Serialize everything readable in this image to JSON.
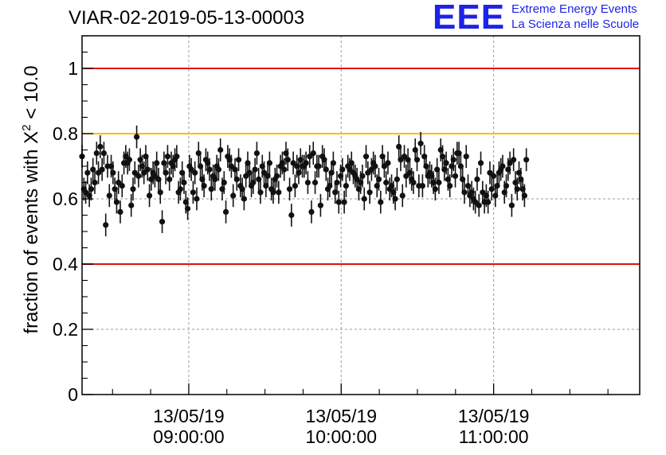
{
  "header": {
    "title": "VIAR-02-2019-05-13-00003"
  },
  "logo": {
    "mark": "EEE",
    "line1": "Extreme Energy Events",
    "line2": "La Scienza nelle Scuole"
  },
  "colors": {
    "red_line": "#dd1111",
    "orange_line": "#ffbb00",
    "marker": "#111111",
    "grid": "#999999",
    "logo_blue": "#1d23e6"
  },
  "chart_data": {
    "type": "scatter",
    "title": "VIAR-02-2019-05-13-00003",
    "ylabel_prefix": "fraction of events with X",
    "ylabel_sup": "2",
    "ylabel_suffix": " < 10.0",
    "xlabel": "",
    "x_range": [
      "13/05/19 08:18:00",
      "11:57:30"
    ],
    "ylim": [
      0,
      1.1
    ],
    "y_ticks": [
      "0",
      "0.2",
      "0.4",
      "0.6",
      "0.8",
      "1"
    ],
    "y_tick_values": [
      0,
      0.2,
      0.4,
      0.6,
      0.8,
      1.0
    ],
    "x_tick_labels": [
      {
        "time": "09:00:00",
        "date": "13/05/19",
        "time_label": "09:00:00"
      },
      {
        "time": "10:00:00",
        "date": "13/05/19",
        "time_label": "10:00:00"
      },
      {
        "time": "11:00:00",
        "date": "13/05/19",
        "time_label": "11:00:00"
      }
    ],
    "grid": true,
    "reference_lines": [
      {
        "y": 1.0,
        "color": "#dd1111"
      },
      {
        "y": 0.8,
        "color": "#ffbb00"
      },
      {
        "y": 0.4,
        "color": "#dd1111"
      }
    ],
    "error_bar": 0.035,
    "series": [
      {
        "x_start": "08:18:00",
        "interval_seconds": 43,
        "values": [
          0.73,
          0.63,
          0.62,
          0.68,
          0.61,
          0.63,
          0.69,
          0.65,
          0.74,
          0.68,
          0.76,
          0.69,
          0.74,
          0.52,
          0.7,
          0.61,
          0.7,
          0.68,
          0.63,
          0.59,
          0.65,
          0.56,
          0.64,
          0.71,
          0.73,
          0.71,
          0.72,
          0.58,
          0.63,
          0.68,
          0.79,
          0.67,
          0.72,
          0.7,
          0.68,
          0.73,
          0.69,
          0.61,
          0.66,
          0.68,
          0.67,
          0.71,
          0.66,
          0.62,
          0.53,
          0.71,
          0.68,
          0.73,
          0.66,
          0.71,
          0.7,
          0.72,
          0.73,
          0.62,
          0.63,
          0.68,
          0.65,
          0.59,
          0.57,
          0.7,
          0.69,
          0.62,
          0.68,
          0.6,
          0.74,
          0.7,
          0.66,
          0.64,
          0.72,
          0.71,
          0.69,
          0.63,
          0.67,
          0.66,
          0.7,
          0.69,
          0.75,
          0.63,
          0.65,
          0.56,
          0.73,
          0.72,
          0.7,
          0.61,
          0.69,
          0.66,
          0.72,
          0.64,
          0.63,
          0.6,
          0.67,
          0.71,
          0.68,
          0.64,
          0.65,
          0.69,
          0.74,
          0.66,
          0.62,
          0.7,
          0.68,
          0.64,
          0.67,
          0.71,
          0.63,
          0.62,
          0.66,
          0.67,
          0.62,
          0.7,
          0.71,
          0.69,
          0.74,
          0.72,
          0.63,
          0.55,
          0.71,
          0.64,
          0.7,
          0.68,
          0.72,
          0.7,
          0.7,
          0.71,
          0.65,
          0.73,
          0.56,
          0.74,
          0.65,
          0.7,
          0.7,
          0.58,
          0.73,
          0.72,
          0.69,
          0.63,
          0.64,
          0.68,
          0.71,
          0.62,
          0.65,
          0.59,
          0.67,
          0.69,
          0.59,
          0.64,
          0.7,
          0.69,
          0.71,
          0.68,
          0.67,
          0.66,
          0.63,
          0.65,
          0.67,
          0.6,
          0.73,
          0.68,
          0.62,
          0.69,
          0.71,
          0.7,
          0.64,
          0.66,
          0.59,
          0.73,
          0.7,
          0.65,
          0.71,
          0.63,
          0.64,
          0.62,
          0.6,
          0.66,
          0.76,
          0.72,
          0.61,
          0.73,
          0.67,
          0.72,
          0.68,
          0.66,
          0.65,
          0.75,
          0.72,
          0.64,
          0.77,
          0.64,
          0.73,
          0.7,
          0.67,
          0.68,
          0.67,
          0.65,
          0.63,
          0.69,
          0.65,
          0.75,
          0.73,
          0.69,
          0.71,
          0.66,
          0.64,
          0.7,
          0.72,
          0.67,
          0.74,
          0.74,
          0.7,
          0.66,
          0.62,
          0.73,
          0.64,
          0.61,
          0.62,
          0.6,
          0.59,
          0.66,
          0.58,
          0.71,
          0.62,
          0.59,
          0.61,
          0.59,
          0.68,
          0.63,
          0.67,
          0.61,
          0.64,
          0.68,
          0.69,
          0.7,
          0.62,
          0.64,
          0.69,
          0.71,
          0.58,
          0.72,
          0.65,
          0.63,
          0.68,
          0.66,
          0.63,
          0.61,
          0.72
        ]
      }
    ]
  }
}
